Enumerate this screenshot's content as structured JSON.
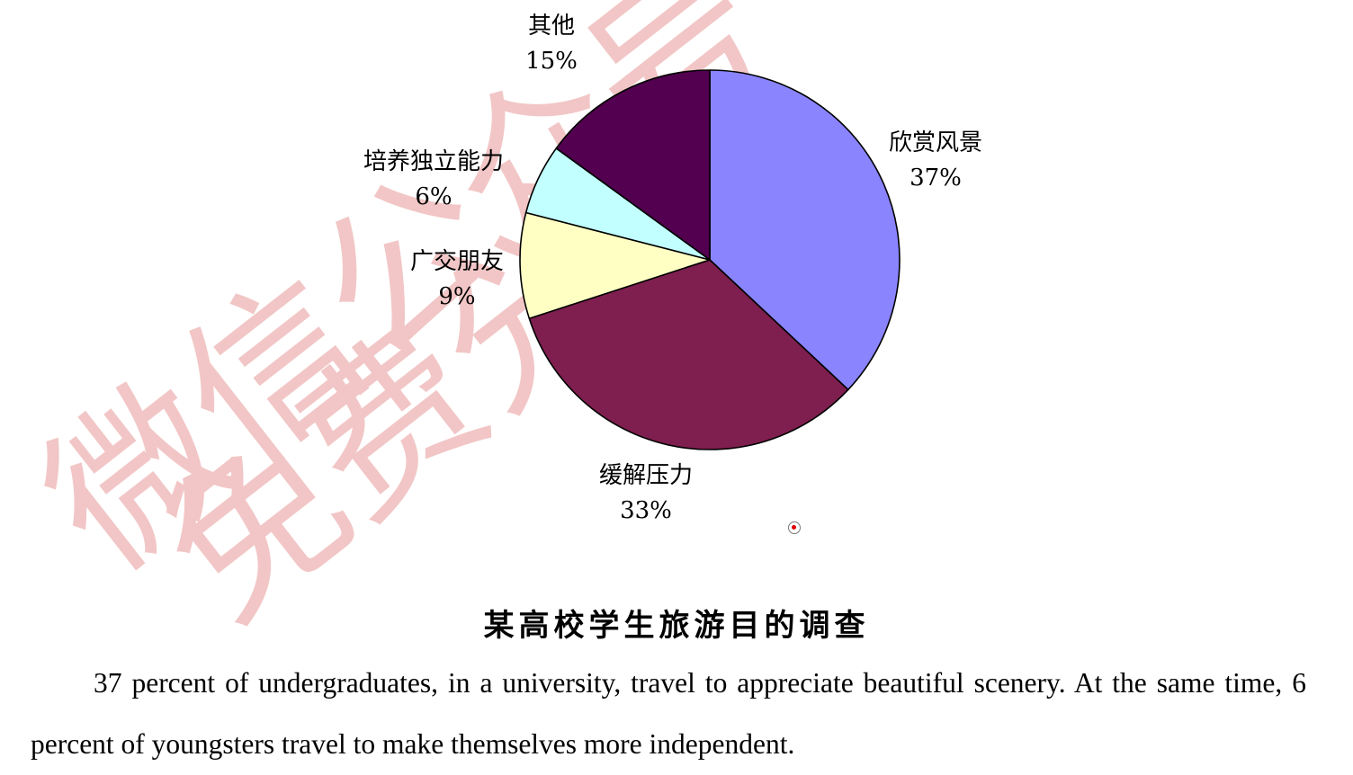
{
  "watermark": {
    "line1": "微信公众号",
    "line2": "免费分享",
    "color": "#f2c6c6"
  },
  "chart_data": {
    "type": "pie",
    "title": "某高校学生旅游目的调查",
    "slices": [
      {
        "label": "欣赏风景",
        "value": 37,
        "value_label": "37%",
        "color": "#8a84ff"
      },
      {
        "label": "缓解压力",
        "value": 33,
        "value_label": "33%",
        "color": "#7f1f4f"
      },
      {
        "label": "广交朋友",
        "value": 9,
        "value_label": "9%",
        "color": "#ffffc4"
      },
      {
        "label": "培养独立能力",
        "value": 6,
        "value_label": "6%",
        "color": "#c2ffff"
      },
      {
        "label": "其他",
        "value": 15,
        "value_label": "15%",
        "color": "#52004f"
      }
    ],
    "start_angle_deg": 0,
    "direction": "clockwise"
  },
  "paragraph": "37 percent of undergraduates, in a university, travel to appreciate beautiful scenery. At the same time, 6 percent of youngsters travel to make themselves more independent."
}
